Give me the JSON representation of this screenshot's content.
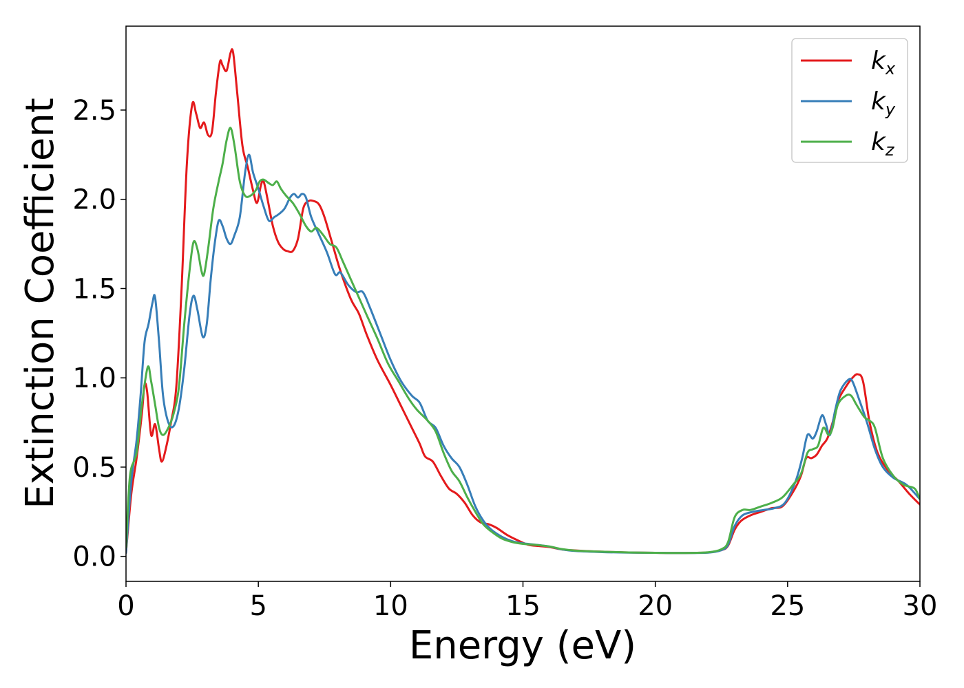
{
  "chart_data": {
    "type": "line",
    "title": "",
    "xlabel": "Energy (eV)",
    "ylabel": "Extinction Coefficient",
    "xlim": [
      0,
      30
    ],
    "ylim": [
      -0.14,
      2.97
    ],
    "xticks": [
      0,
      5,
      10,
      15,
      20,
      25,
      30
    ],
    "xtick_labels": [
      "0",
      "5",
      "10",
      "15",
      "20",
      "25",
      "30"
    ],
    "yticks": [
      0.0,
      0.5,
      1.0,
      1.5,
      2.0,
      2.5
    ],
    "ytick_labels": [
      "0.0",
      "0.5",
      "1.0",
      "1.5",
      "2.0",
      "2.5"
    ],
    "grid": false,
    "legend_position": "top-right",
    "series": [
      {
        "name": "k",
        "subscript": "x",
        "color": "#e41a1c",
        "points": [
          [
            0,
            0.02
          ],
          [
            0.2,
            0.35
          ],
          [
            0.4,
            0.55
          ],
          [
            0.6,
            0.8
          ],
          [
            0.7,
            0.96
          ],
          [
            0.8,
            0.92
          ],
          [
            0.95,
            0.68
          ],
          [
            1.1,
            0.74
          ],
          [
            1.25,
            0.6
          ],
          [
            1.35,
            0.53
          ],
          [
            1.5,
            0.6
          ],
          [
            1.7,
            0.75
          ],
          [
            1.9,
            0.95
          ],
          [
            2.1,
            1.5
          ],
          [
            2.3,
            2.2
          ],
          [
            2.5,
            2.53
          ],
          [
            2.65,
            2.48
          ],
          [
            2.8,
            2.4
          ],
          [
            2.95,
            2.43
          ],
          [
            3.1,
            2.36
          ],
          [
            3.25,
            2.38
          ],
          [
            3.4,
            2.6
          ],
          [
            3.55,
            2.77
          ],
          [
            3.65,
            2.75
          ],
          [
            3.8,
            2.72
          ],
          [
            3.95,
            2.82
          ],
          [
            4.05,
            2.82
          ],
          [
            4.2,
            2.6
          ],
          [
            4.4,
            2.3
          ],
          [
            4.6,
            2.18
          ],
          [
            4.8,
            2.05
          ],
          [
            4.95,
            1.98
          ],
          [
            5.1,
            2.08
          ],
          [
            5.2,
            2.1
          ],
          [
            5.35,
            2.0
          ],
          [
            5.55,
            1.85
          ],
          [
            5.75,
            1.76
          ],
          [
            5.95,
            1.72
          ],
          [
            6.1,
            1.71
          ],
          [
            6.3,
            1.71
          ],
          [
            6.5,
            1.78
          ],
          [
            6.7,
            1.95
          ],
          [
            6.9,
            1.99
          ],
          [
            7.1,
            1.99
          ],
          [
            7.3,
            1.97
          ],
          [
            7.5,
            1.9
          ],
          [
            7.8,
            1.75
          ],
          [
            8.1,
            1.6
          ],
          [
            8.5,
            1.44
          ],
          [
            8.8,
            1.36
          ],
          [
            9.1,
            1.24
          ],
          [
            9.5,
            1.1
          ],
          [
            10.0,
            0.96
          ],
          [
            10.4,
            0.84
          ],
          [
            10.8,
            0.72
          ],
          [
            11.1,
            0.63
          ],
          [
            11.3,
            0.56
          ],
          [
            11.6,
            0.53
          ],
          [
            11.9,
            0.45
          ],
          [
            12.2,
            0.38
          ],
          [
            12.5,
            0.35
          ],
          [
            12.8,
            0.3
          ],
          [
            13.1,
            0.23
          ],
          [
            13.4,
            0.19
          ],
          [
            13.7,
            0.18
          ],
          [
            14.0,
            0.16
          ],
          [
            14.4,
            0.12
          ],
          [
            14.8,
            0.09
          ],
          [
            15.2,
            0.065
          ],
          [
            15.6,
            0.058
          ],
          [
            16.0,
            0.052
          ],
          [
            16.5,
            0.038
          ],
          [
            17.0,
            0.033
          ],
          [
            18.0,
            0.026
          ],
          [
            19.0,
            0.022
          ],
          [
            20.0,
            0.02
          ],
          [
            21.0,
            0.019
          ],
          [
            22.0,
            0.022
          ],
          [
            22.5,
            0.035
          ],
          [
            22.75,
            0.06
          ],
          [
            23.0,
            0.15
          ],
          [
            23.25,
            0.2
          ],
          [
            23.6,
            0.23
          ],
          [
            24.0,
            0.25
          ],
          [
            24.4,
            0.27
          ],
          [
            24.8,
            0.28
          ],
          [
            25.2,
            0.36
          ],
          [
            25.5,
            0.45
          ],
          [
            25.7,
            0.55
          ],
          [
            25.9,
            0.55
          ],
          [
            26.1,
            0.57
          ],
          [
            26.3,
            0.62
          ],
          [
            26.5,
            0.66
          ],
          [
            26.7,
            0.75
          ],
          [
            26.9,
            0.87
          ],
          [
            27.2,
            0.95
          ],
          [
            27.45,
            1.0
          ],
          [
            27.65,
            1.02
          ],
          [
            27.85,
            0.98
          ],
          [
            28.1,
            0.75
          ],
          [
            28.4,
            0.58
          ],
          [
            28.8,
            0.48
          ],
          [
            29.2,
            0.42
          ],
          [
            29.6,
            0.35
          ],
          [
            30.0,
            0.29
          ]
        ]
      },
      {
        "name": "k",
        "subscript": "y",
        "color": "#377eb8",
        "points": [
          [
            0,
            0.02
          ],
          [
            0.2,
            0.42
          ],
          [
            0.4,
            0.65
          ],
          [
            0.55,
            0.9
          ],
          [
            0.7,
            1.2
          ],
          [
            0.85,
            1.3
          ],
          [
            1.0,
            1.42
          ],
          [
            1.1,
            1.45
          ],
          [
            1.25,
            1.2
          ],
          [
            1.4,
            0.9
          ],
          [
            1.6,
            0.75
          ],
          [
            1.8,
            0.73
          ],
          [
            2.0,
            0.83
          ],
          [
            2.2,
            1.05
          ],
          [
            2.4,
            1.35
          ],
          [
            2.55,
            1.46
          ],
          [
            2.7,
            1.38
          ],
          [
            2.9,
            1.23
          ],
          [
            3.05,
            1.3
          ],
          [
            3.2,
            1.55
          ],
          [
            3.35,
            1.75
          ],
          [
            3.5,
            1.88
          ],
          [
            3.65,
            1.85
          ],
          [
            3.8,
            1.78
          ],
          [
            3.95,
            1.75
          ],
          [
            4.1,
            1.8
          ],
          [
            4.3,
            1.9
          ],
          [
            4.5,
            2.15
          ],
          [
            4.65,
            2.25
          ],
          [
            4.8,
            2.15
          ],
          [
            5.0,
            2.06
          ],
          [
            5.2,
            1.96
          ],
          [
            5.4,
            1.88
          ],
          [
            5.6,
            1.9
          ],
          [
            5.8,
            1.92
          ],
          [
            6.0,
            1.95
          ],
          [
            6.2,
            2.01
          ],
          [
            6.35,
            2.03
          ],
          [
            6.5,
            2.01
          ],
          [
            6.65,
            2.03
          ],
          [
            6.8,
            2.01
          ],
          [
            7.0,
            1.9
          ],
          [
            7.3,
            1.8
          ],
          [
            7.6,
            1.7
          ],
          [
            7.9,
            1.58
          ],
          [
            8.1,
            1.59
          ],
          [
            8.4,
            1.52
          ],
          [
            8.7,
            1.48
          ],
          [
            8.95,
            1.48
          ],
          [
            9.2,
            1.4
          ],
          [
            9.6,
            1.25
          ],
          [
            10.0,
            1.1
          ],
          [
            10.4,
            0.98
          ],
          [
            10.8,
            0.9
          ],
          [
            11.1,
            0.86
          ],
          [
            11.4,
            0.76
          ],
          [
            11.7,
            0.72
          ],
          [
            12.0,
            0.62
          ],
          [
            12.3,
            0.55
          ],
          [
            12.6,
            0.5
          ],
          [
            12.9,
            0.4
          ],
          [
            13.2,
            0.28
          ],
          [
            13.5,
            0.2
          ],
          [
            13.8,
            0.15
          ],
          [
            14.2,
            0.11
          ],
          [
            14.6,
            0.085
          ],
          [
            15.0,
            0.073
          ],
          [
            15.5,
            0.065
          ],
          [
            16.0,
            0.055
          ],
          [
            16.5,
            0.038
          ],
          [
            17.0,
            0.03
          ],
          [
            18.0,
            0.024
          ],
          [
            19.0,
            0.021
          ],
          [
            20.0,
            0.02
          ],
          [
            21.0,
            0.019
          ],
          [
            22.0,
            0.021
          ],
          [
            22.5,
            0.035
          ],
          [
            22.75,
            0.065
          ],
          [
            23.0,
            0.17
          ],
          [
            23.3,
            0.23
          ],
          [
            23.7,
            0.25
          ],
          [
            24.1,
            0.26
          ],
          [
            24.5,
            0.27
          ],
          [
            24.9,
            0.3
          ],
          [
            25.3,
            0.42
          ],
          [
            25.55,
            0.55
          ],
          [
            25.75,
            0.68
          ],
          [
            25.95,
            0.66
          ],
          [
            26.1,
            0.7
          ],
          [
            26.3,
            0.79
          ],
          [
            26.45,
            0.74
          ],
          [
            26.6,
            0.68
          ],
          [
            26.8,
            0.82
          ],
          [
            27.0,
            0.93
          ],
          [
            27.3,
            0.99
          ],
          [
            27.45,
            0.98
          ],
          [
            27.7,
            0.88
          ],
          [
            28.0,
            0.75
          ],
          [
            28.3,
            0.6
          ],
          [
            28.6,
            0.5
          ],
          [
            29.0,
            0.44
          ],
          [
            29.5,
            0.4
          ],
          [
            30.0,
            0.32
          ]
        ]
      },
      {
        "name": "k",
        "subscript": "z",
        "color": "#4daf4a",
        "points": [
          [
            0,
            0.05
          ],
          [
            0.15,
            0.45
          ],
          [
            0.4,
            0.58
          ],
          [
            0.6,
            0.85
          ],
          [
            0.82,
            1.06
          ],
          [
            0.95,
            0.98
          ],
          [
            1.1,
            0.85
          ],
          [
            1.25,
            0.72
          ],
          [
            1.4,
            0.68
          ],
          [
            1.6,
            0.72
          ],
          [
            1.8,
            0.8
          ],
          [
            2.0,
            0.95
          ],
          [
            2.2,
            1.3
          ],
          [
            2.4,
            1.6
          ],
          [
            2.55,
            1.76
          ],
          [
            2.7,
            1.72
          ],
          [
            2.85,
            1.6
          ],
          [
            2.95,
            1.58
          ],
          [
            3.1,
            1.72
          ],
          [
            3.3,
            1.95
          ],
          [
            3.5,
            2.1
          ],
          [
            3.65,
            2.2
          ],
          [
            3.8,
            2.33
          ],
          [
            3.95,
            2.4
          ],
          [
            4.1,
            2.3
          ],
          [
            4.3,
            2.1
          ],
          [
            4.5,
            2.02
          ],
          [
            4.7,
            2.02
          ],
          [
            4.9,
            2.05
          ],
          [
            5.05,
            2.1
          ],
          [
            5.2,
            2.11
          ],
          [
            5.4,
            2.09
          ],
          [
            5.55,
            2.08
          ],
          [
            5.7,
            2.1
          ],
          [
            5.85,
            2.06
          ],
          [
            6.05,
            2.02
          ],
          [
            6.3,
            1.98
          ],
          [
            6.55,
            1.92
          ],
          [
            6.8,
            1.85
          ],
          [
            7.0,
            1.82
          ],
          [
            7.2,
            1.84
          ],
          [
            7.45,
            1.8
          ],
          [
            7.7,
            1.75
          ],
          [
            7.95,
            1.73
          ],
          [
            8.2,
            1.65
          ],
          [
            8.5,
            1.55
          ],
          [
            8.8,
            1.45
          ],
          [
            9.1,
            1.35
          ],
          [
            9.5,
            1.22
          ],
          [
            9.9,
            1.08
          ],
          [
            10.3,
            0.98
          ],
          [
            10.7,
            0.88
          ],
          [
            11.0,
            0.82
          ],
          [
            11.4,
            0.76
          ],
          [
            11.7,
            0.7
          ],
          [
            12.0,
            0.58
          ],
          [
            12.3,
            0.48
          ],
          [
            12.6,
            0.42
          ],
          [
            12.9,
            0.33
          ],
          [
            13.2,
            0.25
          ],
          [
            13.5,
            0.18
          ],
          [
            13.8,
            0.14
          ],
          [
            14.2,
            0.1
          ],
          [
            14.6,
            0.08
          ],
          [
            15.0,
            0.07
          ],
          [
            15.5,
            0.064
          ],
          [
            16.0,
            0.055
          ],
          [
            16.5,
            0.04
          ],
          [
            17.0,
            0.032
          ],
          [
            18.0,
            0.026
          ],
          [
            19.0,
            0.022
          ],
          [
            20.0,
            0.02
          ],
          [
            21.0,
            0.019
          ],
          [
            22.0,
            0.023
          ],
          [
            22.5,
            0.04
          ],
          [
            22.75,
            0.08
          ],
          [
            23.0,
            0.22
          ],
          [
            23.3,
            0.26
          ],
          [
            23.6,
            0.26
          ],
          [
            24.0,
            0.28
          ],
          [
            24.4,
            0.3
          ],
          [
            24.8,
            0.33
          ],
          [
            25.2,
            0.4
          ],
          [
            25.5,
            0.46
          ],
          [
            25.75,
            0.58
          ],
          [
            25.95,
            0.6
          ],
          [
            26.15,
            0.62
          ],
          [
            26.35,
            0.72
          ],
          [
            26.55,
            0.68
          ],
          [
            26.7,
            0.72
          ],
          [
            26.9,
            0.85
          ],
          [
            27.2,
            0.9
          ],
          [
            27.4,
            0.9
          ],
          [
            27.6,
            0.85
          ],
          [
            27.9,
            0.78
          ],
          [
            28.1,
            0.76
          ],
          [
            28.3,
            0.72
          ],
          [
            28.6,
            0.55
          ],
          [
            29.0,
            0.45
          ],
          [
            29.4,
            0.4
          ],
          [
            29.8,
            0.38
          ],
          [
            30.0,
            0.32
          ]
        ]
      }
    ]
  }
}
